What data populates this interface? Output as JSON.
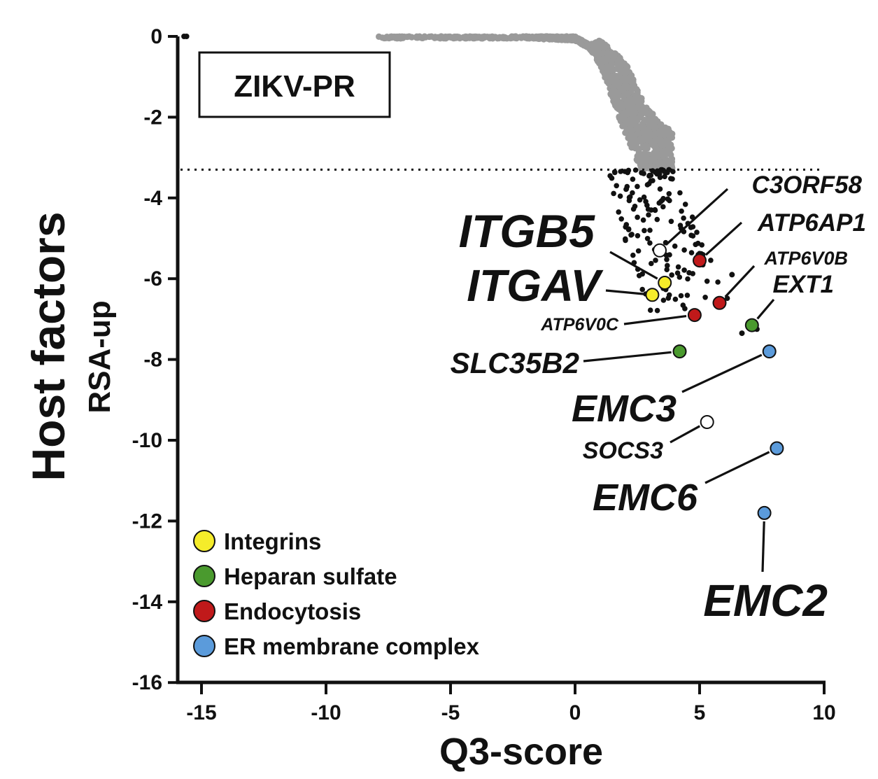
{
  "chart_data": {
    "type": "scatter",
    "title": "ZIKV-PR",
    "xlabel": "Q3-score",
    "ylabel": "Host factors",
    "ylabel_sub": "RSA-up",
    "xlim": [
      -16,
      10
    ],
    "ylim": [
      -16,
      0
    ],
    "xticks": [
      -15,
      -10,
      -5,
      0,
      5,
      10
    ],
    "yticks": [
      0,
      -2,
      -4,
      -6,
      -8,
      -10,
      -12,
      -14,
      -16
    ],
    "threshold_y": -3.3,
    "colors": {
      "background_points": "#9a9a9a",
      "hit_points": "#111111",
      "Integrins": "#f5ec2a",
      "Heparan sulfate": "#4a9a2e",
      "Endocytosis": "#c0191a",
      "ER membrane complex": "#5b9bdb",
      "unassigned": "#ffffff"
    },
    "legend": [
      {
        "label": "Integrins",
        "color": "#f5ec2a"
      },
      {
        "label": "Heparan sulfate",
        "color": "#4a9a2e"
      },
      {
        "label": "Endocytosis",
        "color": "#c0191a"
      },
      {
        "label": "ER membrane complex",
        "color": "#5b9bdb"
      }
    ],
    "highlighted_genes": [
      {
        "gene": "ITGB5",
        "x": 3.6,
        "y": -6.1,
        "group": "Integrins"
      },
      {
        "gene": "ITGAV",
        "x": 3.1,
        "y": -6.4,
        "group": "Integrins"
      },
      {
        "gene": "C3ORF58",
        "x": 3.4,
        "y": -5.3,
        "group": "unassigned"
      },
      {
        "gene": "ATP6AP1",
        "x": 5.0,
        "y": -5.55,
        "group": "Endocytosis"
      },
      {
        "gene": "ATP6V0B",
        "x": 5.8,
        "y": -6.6,
        "group": "Endocytosis"
      },
      {
        "gene": "ATP6V0C",
        "x": 4.8,
        "y": -6.9,
        "group": "Endocytosis"
      },
      {
        "gene": "EXT1",
        "x": 7.1,
        "y": -7.15,
        "group": "Heparan sulfate"
      },
      {
        "gene": "SLC35B2",
        "x": 4.2,
        "y": -7.8,
        "group": "Heparan sulfate"
      },
      {
        "gene": "EMC3",
        "x": 7.8,
        "y": -7.8,
        "group": "ER membrane complex"
      },
      {
        "gene": "SOCS3",
        "x": 5.3,
        "y": -9.55,
        "group": "unassigned"
      },
      {
        "gene": "EMC6",
        "x": 8.1,
        "y": -10.2,
        "group": "ER membrane complex"
      },
      {
        "gene": "EMC2",
        "x": 7.6,
        "y": -11.8,
        "group": "ER membrane complex"
      }
    ],
    "background_curve": {
      "description_points": [
        [
          -8,
          0
        ],
        [
          -2,
          0
        ],
        [
          0,
          -0.05
        ],
        [
          1,
          -0.4
        ],
        [
          2,
          -1.5
        ],
        [
          2.8,
          -2.6
        ],
        [
          3.8,
          -3.2
        ]
      ],
      "spread_y": 0.9,
      "count": 1400
    },
    "hits_region": {
      "x_range": [
        1.0,
        6.5
      ],
      "y_range": [
        -3.3,
        -6.8
      ],
      "count": 160
    },
    "extra_points": [
      [
        -15.7,
        0
      ],
      [
        -15.6,
        0
      ],
      [
        6.7,
        -7.35
      ],
      [
        7.3,
        -7.25
      ],
      [
        6.3,
        -5.9
      ]
    ]
  }
}
